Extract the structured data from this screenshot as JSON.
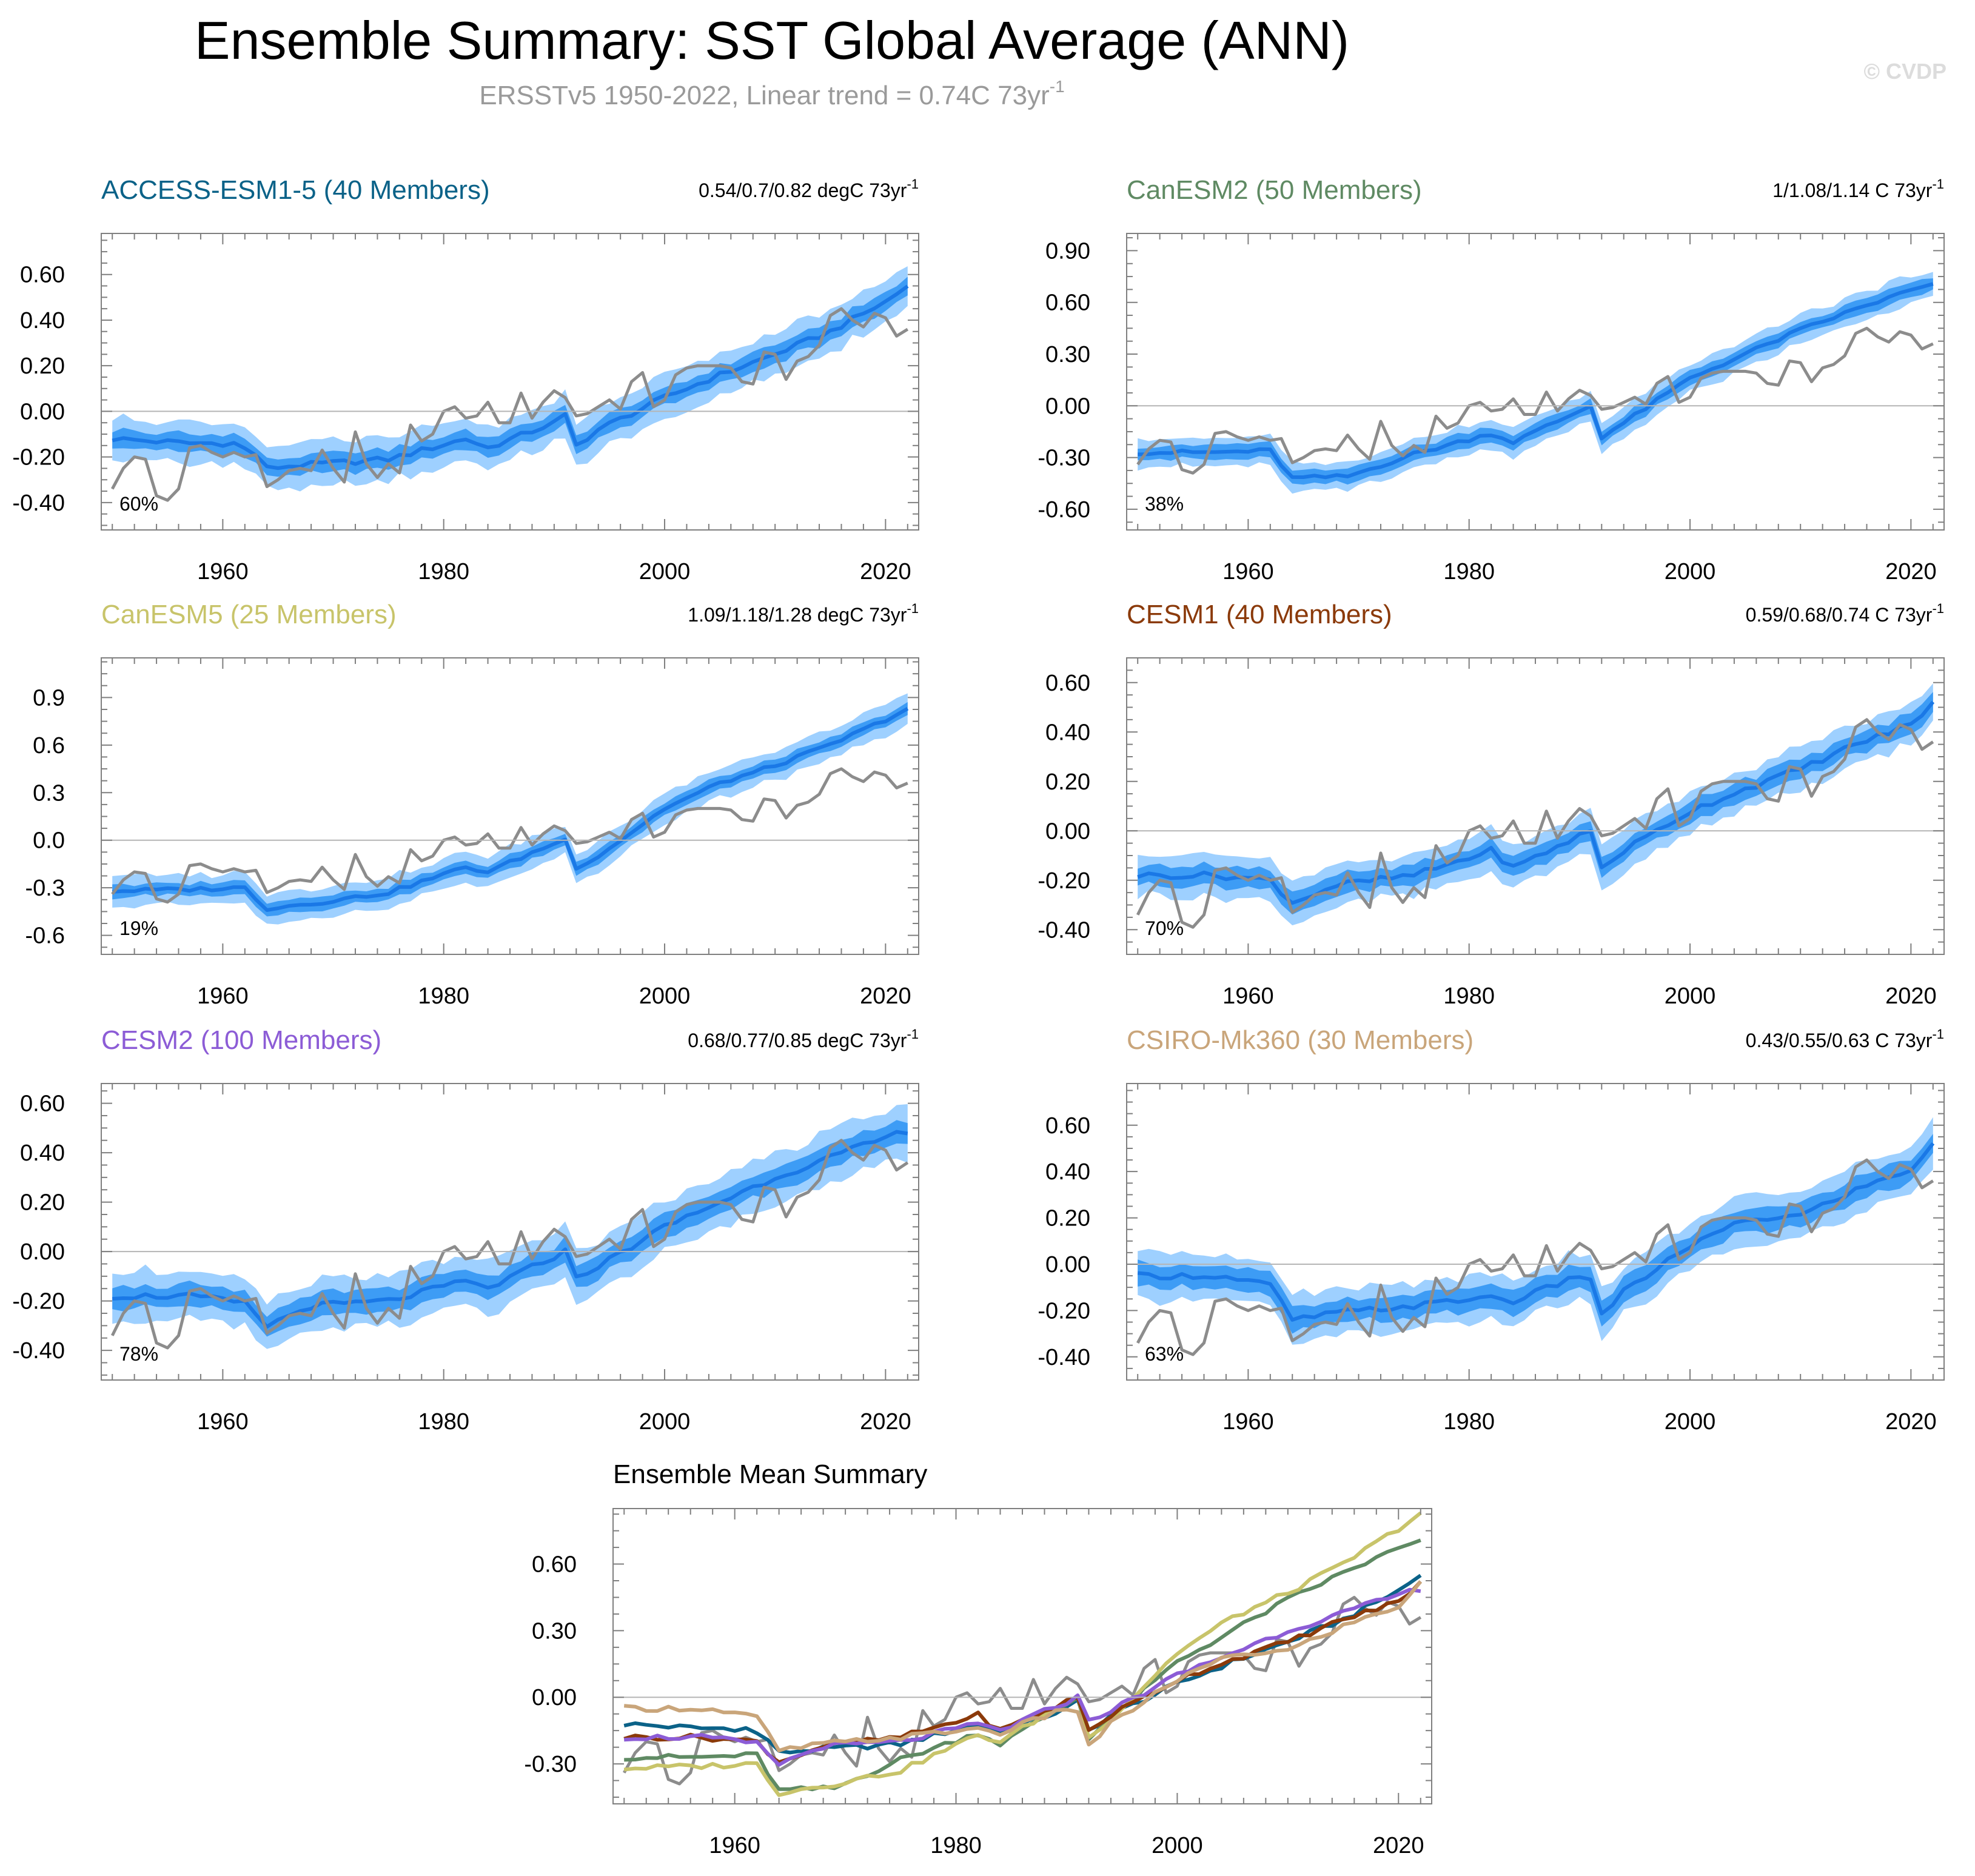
{
  "page": {
    "title": "Ensemble Summary: SST Global Average (ANN)",
    "subtitle_prefix": "ERSSTv5 1950-2022, Linear trend = 0.74C 73yr",
    "subtitle_sup": "-1",
    "watermark": "© CVDP"
  },
  "colors": {
    "band_outer": "#9ed0ff",
    "band_inner": "#3d9cf5",
    "mean_line": "#1a78e6",
    "obs_line": "#8c8c8c",
    "zero_line": "#b5b5b5",
    "frame": "#7f7f7f"
  },
  "chart_data": [
    {
      "type": "line",
      "panel": "ACCESS",
      "name": "ACCESS-ESM1-5",
      "title": "ACCESS-ESM1-5 (40 Members)",
      "title_color": "#0b6288",
      "trend_text": "0.54/0.7/0.82 degC 73yr",
      "trend_sup": "-1",
      "pct_label": "60%",
      "xlim": [
        1949,
        2023
      ],
      "ylim": [
        -0.52,
        0.78
      ],
      "yticks": [
        -0.4,
        -0.2,
        0.0,
        0.2,
        0.4,
        0.6
      ],
      "ytick_labels": [
        "-0.40",
        "-0.20",
        "0.00",
        "0.20",
        "0.40",
        "0.60"
      ],
      "xticks": [
        1960,
        1980,
        2000,
        2020
      ],
      "xtick_labels": [
        "1960",
        "1980",
        "2000",
        "2020"
      ],
      "keypoints": [
        [
          1950,
          -0.12
        ],
        [
          1957,
          -0.14
        ],
        [
          1961,
          -0.14
        ],
        [
          1963,
          -0.19
        ],
        [
          1964,
          -0.25
        ],
        [
          1966,
          -0.24
        ],
        [
          1975,
          -0.21
        ],
        [
          1982,
          -0.12
        ],
        [
          1984,
          -0.16
        ],
        [
          1990,
          -0.05
        ],
        [
          1991,
          -0.02
        ],
        [
          1992,
          -0.15
        ],
        [
          1994,
          -0.08
        ],
        [
          2000,
          0.06
        ],
        [
          2005,
          0.16
        ],
        [
          2010,
          0.25
        ],
        [
          2015,
          0.35
        ],
        [
          2020,
          0.48
        ],
        [
          2022,
          0.55
        ]
      ],
      "inner_halfwidth": 0.04,
      "outer_halfwidth": 0.09
    },
    {
      "type": "line",
      "panel": "CanESM2",
      "name": "CanESM2",
      "title": "CanESM2 (50 Members)",
      "title_color": "#5f8a63",
      "trend_text": "1/1.08/1.14 C 73yr",
      "trend_sup": "-1",
      "pct_label": "38%",
      "xlim": [
        1949,
        2023
      ],
      "ylim": [
        -0.72,
        1.0
      ],
      "yticks": [
        -0.6,
        -0.3,
        0.0,
        0.3,
        0.6,
        0.9
      ],
      "ytick_labels": [
        "-0.60",
        "-0.30",
        "0.00",
        "0.30",
        "0.60",
        "0.90"
      ],
      "xticks": [
        1960,
        1980,
        2000,
        2020
      ],
      "xtick_labels": [
        "1960",
        "1980",
        "2000",
        "2020"
      ],
      "keypoints": [
        [
          1950,
          -0.27
        ],
        [
          1957,
          -0.27
        ],
        [
          1962,
          -0.26
        ],
        [
          1964,
          -0.42
        ],
        [
          1969,
          -0.41
        ],
        [
          1975,
          -0.28
        ],
        [
          1982,
          -0.16
        ],
        [
          1984,
          -0.21
        ],
        [
          1990,
          -0.03
        ],
        [
          1991,
          0.0
        ],
        [
          1992,
          -0.18
        ],
        [
          1994,
          -0.1
        ],
        [
          2000,
          0.16
        ],
        [
          2005,
          0.3
        ],
        [
          2010,
          0.44
        ],
        [
          2015,
          0.56
        ],
        [
          2020,
          0.67
        ],
        [
          2022,
          0.7
        ]
      ],
      "inner_halfwidth": 0.04,
      "outer_halfwidth": 0.08
    },
    {
      "type": "line",
      "panel": "CanESM5",
      "name": "CanESM5",
      "title": "CanESM5 (25 Members)",
      "title_color": "#c8c46a",
      "trend_text": "1.09/1.18/1.28 degC 73yr",
      "trend_sup": "-1",
      "pct_label": "19%",
      "xlim": [
        1949,
        2023
      ],
      "ylim": [
        -0.72,
        1.15
      ],
      "yticks": [
        -0.6,
        -0.3,
        0.0,
        0.3,
        0.6,
        0.9
      ],
      "ytick_labels": [
        "-0.6",
        "-0.3",
        "0.0",
        "0.3",
        "0.6",
        "0.9"
      ],
      "xticks": [
        1960,
        1980,
        2000,
        2020
      ],
      "xtick_labels": [
        "1960",
        "1980",
        "2000",
        "2020"
      ],
      "keypoints": [
        [
          1950,
          -0.32
        ],
        [
          1957,
          -0.31
        ],
        [
          1962,
          -0.3
        ],
        [
          1964,
          -0.43
        ],
        [
          1969,
          -0.39
        ],
        [
          1975,
          -0.33
        ],
        [
          1982,
          -0.17
        ],
        [
          1984,
          -0.2
        ],
        [
          1990,
          -0.02
        ],
        [
          1991,
          0.0
        ],
        [
          1992,
          -0.17
        ],
        [
          1994,
          -0.1
        ],
        [
          2000,
          0.2
        ],
        [
          2005,
          0.36
        ],
        [
          2010,
          0.47
        ],
        [
          2015,
          0.6
        ],
        [
          2020,
          0.76
        ],
        [
          2022,
          0.83
        ]
      ],
      "inner_halfwidth": 0.04,
      "outer_halfwidth": 0.09
    },
    {
      "type": "line",
      "panel": "CESM1",
      "name": "CESM1",
      "title": "CESM1 (40 Members)",
      "title_color": "#8b3a0a",
      "trend_text": "0.59/0.68/0.74 C 73yr",
      "trend_sup": "-1",
      "pct_label": "70%",
      "xlim": [
        1949,
        2023
      ],
      "ylim": [
        -0.5,
        0.7
      ],
      "yticks": [
        -0.4,
        -0.2,
        0.0,
        0.2,
        0.4,
        0.6
      ],
      "ytick_labels": [
        "-0.40",
        "-0.20",
        "0.00",
        "0.20",
        "0.40",
        "0.60"
      ],
      "xticks": [
        1960,
        1980,
        2000,
        2020
      ],
      "xtick_labels": [
        "1960",
        "1980",
        "2000",
        "2020"
      ],
      "keypoints": [
        [
          1950,
          -0.18
        ],
        [
          1957,
          -0.18
        ],
        [
          1962,
          -0.2
        ],
        [
          1964,
          -0.29
        ],
        [
          1968,
          -0.22
        ],
        [
          1975,
          -0.18
        ],
        [
          1982,
          -0.08
        ],
        [
          1984,
          -0.15
        ],
        [
          1990,
          -0.02
        ],
        [
          1991,
          0.0
        ],
        [
          1992,
          -0.15
        ],
        [
          1994,
          -0.08
        ],
        [
          2000,
          0.08
        ],
        [
          2005,
          0.17
        ],
        [
          2010,
          0.25
        ],
        [
          2015,
          0.35
        ],
        [
          2020,
          0.43
        ],
        [
          2022,
          0.52
        ]
      ],
      "inner_halfwidth": 0.04,
      "outer_halfwidth": 0.08
    },
    {
      "type": "line",
      "panel": "CESM2",
      "name": "CESM2",
      "title": "CESM2 (100 Members)",
      "title_color": "#8c5cd6",
      "trend_text": "0.68/0.77/0.85 degC 73yr",
      "trend_sup": "-1",
      "pct_label": "78%",
      "xlim": [
        1949,
        2023
      ],
      "ylim": [
        -0.52,
        0.68
      ],
      "yticks": [
        -0.4,
        -0.2,
        0.0,
        0.2,
        0.4,
        0.6
      ],
      "ytick_labels": [
        "-0.40",
        "-0.20",
        "0.00",
        "0.20",
        "0.40",
        "0.60"
      ],
      "xticks": [
        1960,
        1980,
        2000,
        2020
      ],
      "xtick_labels": [
        "1960",
        "1980",
        "2000",
        "2020"
      ],
      "keypoints": [
        [
          1950,
          -0.18
        ],
        [
          1957,
          -0.18
        ],
        [
          1962,
          -0.21
        ],
        [
          1964,
          -0.3
        ],
        [
          1968,
          -0.22
        ],
        [
          1975,
          -0.2
        ],
        [
          1982,
          -0.12
        ],
        [
          1984,
          -0.15
        ],
        [
          1990,
          -0.02
        ],
        [
          1991,
          0.0
        ],
        [
          1992,
          -0.1
        ],
        [
          1994,
          -0.06
        ],
        [
          2000,
          0.1
        ],
        [
          2005,
          0.2
        ],
        [
          2010,
          0.3
        ],
        [
          2015,
          0.38
        ],
        [
          2020,
          0.46
        ],
        [
          2022,
          0.49
        ]
      ],
      "inner_halfwidth": 0.045,
      "outer_halfwidth": 0.1
    },
    {
      "type": "line",
      "panel": "CSIRO",
      "name": "CSIRO-Mk360",
      "title": "CSIRO-Mk360 (30 Members)",
      "title_color": "#c9a57a",
      "trend_text": "0.43/0.55/0.63 C 73yr",
      "trend_sup": "-1",
      "pct_label": "63%",
      "xlim": [
        1949,
        2023
      ],
      "ylim": [
        -0.5,
        0.78
      ],
      "yticks": [
        -0.4,
        -0.2,
        0.0,
        0.2,
        0.4,
        0.6
      ],
      "ytick_labels": [
        "-0.40",
        "-0.20",
        "0.00",
        "0.20",
        "0.40",
        "0.60"
      ],
      "xticks": [
        1960,
        1980,
        2000,
        2020
      ],
      "xtick_labels": [
        "1960",
        "1980",
        "2000",
        "2020"
      ],
      "keypoints": [
        [
          1950,
          -0.05
        ],
        [
          1957,
          -0.05
        ],
        [
          1962,
          -0.09
        ],
        [
          1964,
          -0.24
        ],
        [
          1968,
          -0.21
        ],
        [
          1975,
          -0.18
        ],
        [
          1982,
          -0.14
        ],
        [
          1984,
          -0.16
        ],
        [
          1990,
          -0.05
        ],
        [
          1991,
          -0.06
        ],
        [
          1992,
          -0.22
        ],
        [
          1994,
          -0.12
        ],
        [
          2000,
          0.08
        ],
        [
          2005,
          0.19
        ],
        [
          2010,
          0.21
        ],
        [
          2015,
          0.32
        ],
        [
          2020,
          0.41
        ],
        [
          2022,
          0.52
        ]
      ],
      "inner_halfwidth": 0.05,
      "outer_halfwidth": 0.1
    },
    {
      "type": "line",
      "panel": "summary",
      "title": "Ensemble Mean Summary",
      "xlim": [
        1949,
        2023
      ],
      "ylim": [
        -0.48,
        0.85
      ],
      "yticks": [
        -0.3,
        0.0,
        0.3,
        0.6
      ],
      "ytick_labels": [
        "-0.30",
        "0.00",
        "0.30",
        "0.60"
      ],
      "xticks": [
        1960,
        1980,
        2000,
        2020
      ],
      "xtick_labels": [
        "1960",
        "1980",
        "2000",
        "2020"
      ],
      "series": [
        {
          "name": "ACCESS-ESM1-5",
          "color": "#0b6288"
        },
        {
          "name": "CanESM2",
          "color": "#5f8a63"
        },
        {
          "name": "CanESM5",
          "color": "#c8c46a"
        },
        {
          "name": "CESM1",
          "color": "#8b3a0a"
        },
        {
          "name": "CESM2",
          "color": "#8c5cd6"
        },
        {
          "name": "CSIRO-Mk360",
          "color": "#c9a57a"
        }
      ]
    }
  ],
  "observations": {
    "name": "ERSSTv5",
    "years": [
      1950,
      1951,
      1952,
      1953,
      1954,
      1955,
      1956,
      1957,
      1958,
      1959,
      1960,
      1961,
      1962,
      1963,
      1964,
      1965,
      1966,
      1967,
      1968,
      1969,
      1970,
      1971,
      1972,
      1973,
      1974,
      1975,
      1976,
      1977,
      1978,
      1979,
      1980,
      1981,
      1982,
      1983,
      1984,
      1985,
      1986,
      1987,
      1988,
      1989,
      1990,
      1991,
      1992,
      1993,
      1994,
      1995,
      1996,
      1997,
      1998,
      1999,
      2000,
      2001,
      2002,
      2003,
      2004,
      2005,
      2006,
      2007,
      2008,
      2009,
      2010,
      2011,
      2012,
      2013,
      2014,
      2015,
      2016,
      2017,
      2018,
      2019,
      2020,
      2021,
      2022
    ],
    "values": [
      -0.34,
      -0.25,
      -0.2,
      -0.21,
      -0.37,
      -0.39,
      -0.34,
      -0.16,
      -0.15,
      -0.18,
      -0.2,
      -0.18,
      -0.2,
      -0.19,
      -0.33,
      -0.3,
      -0.26,
      -0.25,
      -0.26,
      -0.17,
      -0.25,
      -0.31,
      -0.09,
      -0.23,
      -0.29,
      -0.23,
      -0.27,
      -0.06,
      -0.13,
      -0.1,
      0.0,
      0.02,
      -0.03,
      -0.02,
      0.04,
      -0.05,
      -0.05,
      0.08,
      -0.03,
      0.04,
      0.09,
      0.06,
      -0.02,
      -0.01,
      0.02,
      0.05,
      0.01,
      0.13,
      0.17,
      0.02,
      0.05,
      0.16,
      0.19,
      0.2,
      0.2,
      0.2,
      0.19,
      0.13,
      0.12,
      0.26,
      0.25,
      0.14,
      0.22,
      0.24,
      0.29,
      0.42,
      0.45,
      0.4,
      0.37,
      0.43,
      0.41,
      0.33,
      0.36
    ]
  }
}
